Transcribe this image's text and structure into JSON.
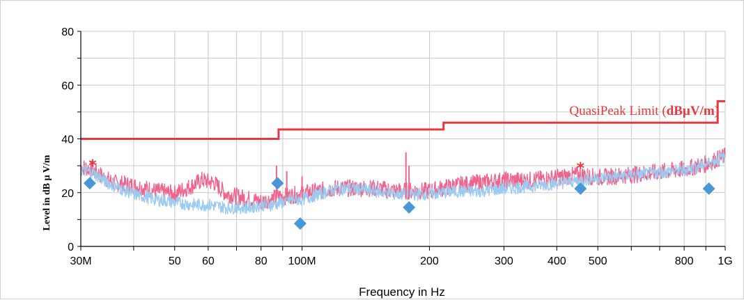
{
  "chart_data": {
    "type": "line",
    "xlabel": "Frequency in Hz",
    "ylabel": "Level in dB µ V/m",
    "xscale": "log",
    "xlim": [
      30000000,
      1000000000
    ],
    "ylim": [
      0,
      80
    ],
    "x_ticks": [
      {
        "value": 30000000,
        "label": "30M"
      },
      {
        "value": 50000000,
        "label": "50"
      },
      {
        "value": 60000000,
        "label": "60"
      },
      {
        "value": 80000000,
        "label": "80"
      },
      {
        "value": 100000000,
        "label": "100M"
      },
      {
        "value": 200000000,
        "label": "200"
      },
      {
        "value": 300000000,
        "label": "300"
      },
      {
        "value": 400000000,
        "label": "400"
      },
      {
        "value": 500000000,
        "label": "500"
      },
      {
        "value": 800000000,
        "label": "800"
      },
      {
        "value": 1000000000,
        "label": "1G"
      }
    ],
    "y_ticks": [
      0,
      20,
      40,
      60,
      80
    ],
    "grid": true,
    "colors": {
      "limit": "#e8373f",
      "peak_scan": "#f0648c",
      "avg_scan": "#9ccbf2",
      "markers": "#4a97d6",
      "peak_marks": "#e8373f"
    },
    "limit": {
      "label": "QuasiPeak Limit (",
      "unit": "dBµV/m",
      "label_end": ")",
      "points": [
        [
          30000000,
          40
        ],
        [
          88000000,
          40
        ],
        [
          88000000,
          43.5
        ],
        [
          216000000,
          43.5
        ],
        [
          216000000,
          46
        ],
        [
          960000000,
          46
        ],
        [
          960000000,
          54
        ],
        [
          1000000000,
          54
        ]
      ]
    },
    "series": [
      {
        "x": [
          30000000,
          32000000,
          34000000,
          36000000,
          40000000,
          45000000,
          50000000,
          55000000,
          58000000,
          62000000,
          66000000,
          70000000,
          75000000,
          80000000,
          85000000,
          88000000,
          92000000,
          100000000,
          110000000,
          120000000,
          135000000,
          150000000,
          165000000,
          180000000,
          200000000,
          230000000,
          260000000,
          300000000,
          350000000,
          400000000,
          450000000,
          500000000,
          600000000,
          700000000,
          800000000,
          900000000,
          1000000000
        ],
        "values": [
          29,
          28,
          25,
          23,
          22,
          20,
          19,
          22,
          24,
          23,
          19,
          18,
          17,
          16,
          17,
          18,
          18,
          19,
          20,
          21,
          21,
          21,
          20,
          20,
          20,
          22,
          23,
          24,
          24,
          25,
          26,
          25,
          26,
          27,
          28,
          30,
          33
        ]
      },
      {
        "x": [
          30000000,
          32000000,
          34000000,
          36000000,
          40000000,
          45000000,
          50000000,
          55000000,
          60000000,
          66000000,
          70000000,
          75000000,
          80000000,
          85000000,
          90000000,
          95000000,
          100000000,
          110000000,
          120000000,
          135000000,
          150000000,
          165000000,
          180000000,
          200000000,
          230000000,
          260000000,
          300000000,
          350000000,
          400000000,
          450000000,
          500000000,
          600000000,
          700000000,
          800000000,
          900000000,
          1000000000
        ],
        "values": [
          28,
          27,
          24,
          22,
          19,
          17,
          16,
          15,
          15,
          14,
          14,
          14,
          15,
          15,
          16,
          17,
          17,
          19,
          21,
          21,
          20,
          19,
          19,
          19,
          20,
          20,
          21,
          22,
          23,
          24,
          25,
          26,
          27,
          28,
          30,
          33
        ]
      }
    ],
    "spikes": [
      {
        "x": 87000000,
        "peak": 30
      },
      {
        "x": 92000000,
        "peak": 28
      },
      {
        "x": 100000000,
        "peak": 26
      },
      {
        "x": 176000000,
        "peak": 35
      },
      {
        "x": 179000000,
        "peak": 30
      }
    ],
    "markers": [
      {
        "x": 31500000,
        "y": 23.5
      },
      {
        "x": 87500000,
        "y": 23.5
      },
      {
        "x": 99000000,
        "y": 8.5
      },
      {
        "x": 179000000,
        "y": 14.5
      },
      {
        "x": 455000000,
        "y": 21.5
      },
      {
        "x": 915000000,
        "y": 21.5
      }
    ],
    "peaks": [
      {
        "x": 32000000,
        "y": 30.5
      },
      {
        "x": 455000000,
        "y": 29.5
      }
    ]
  }
}
